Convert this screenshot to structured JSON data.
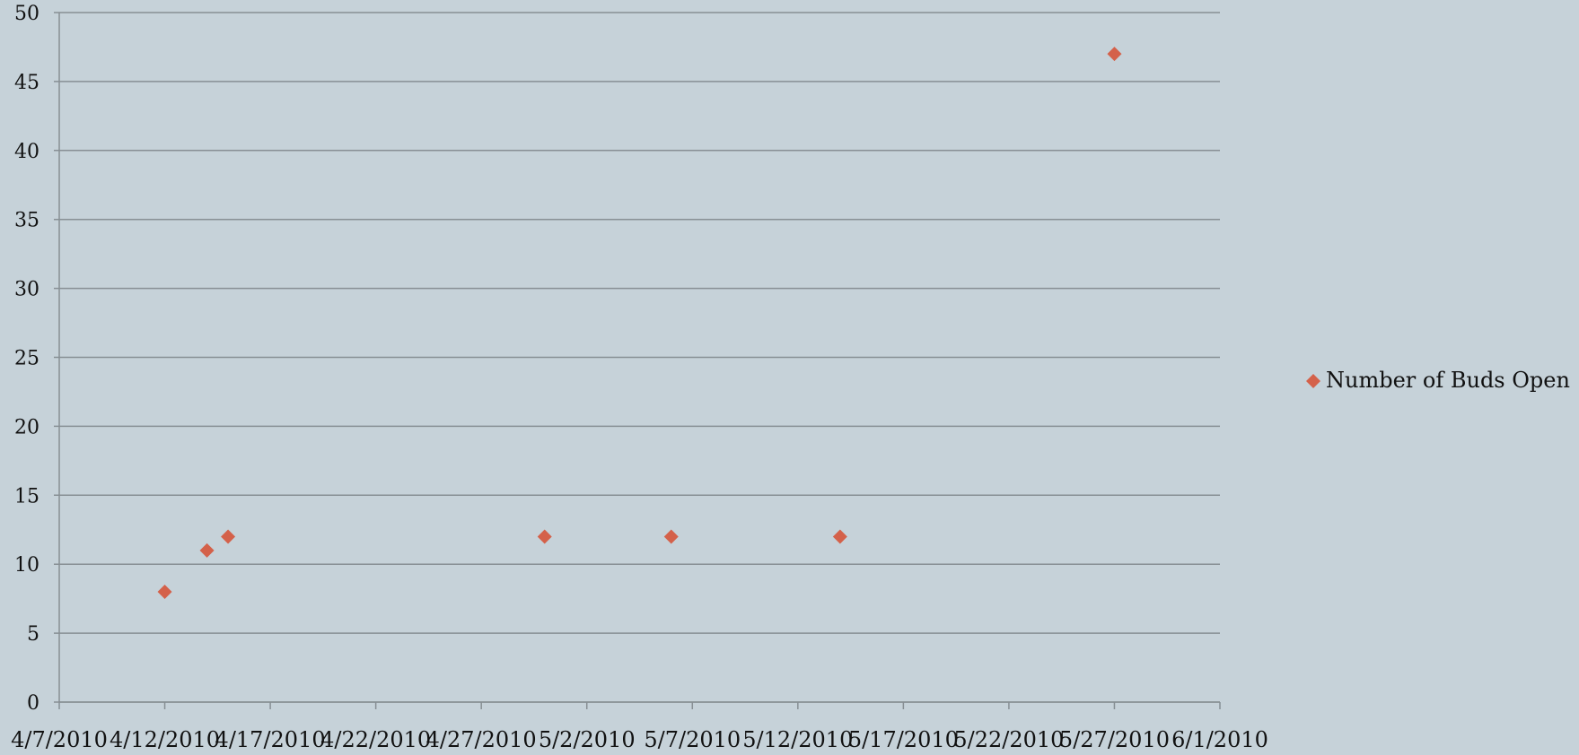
{
  "chart_data": {
    "type": "scatter",
    "title": "",
    "xlabel": "",
    "ylabel": "",
    "x_axis": {
      "type": "date",
      "min": "2010-04-07",
      "max": "2010-06-01",
      "tick_labels": [
        "4/7/2010",
        "4/12/2010",
        "4/17/2010",
        "4/22/2010",
        "4/27/2010",
        "5/2/2010",
        "5/7/2010",
        "5/12/2010",
        "5/17/2010",
        "5/22/2010",
        "5/27/2010",
        "6/1/2010"
      ]
    },
    "y_axis": {
      "min": 0,
      "max": 50,
      "step": 5,
      "tick_labels": [
        "0",
        "5",
        "10",
        "15",
        "20",
        "25",
        "30",
        "35",
        "40",
        "45",
        "50"
      ]
    },
    "grid": "horizontal",
    "legend": {
      "position": "right"
    },
    "series": [
      {
        "name": "Number of Buds Open",
        "color": "#d4614a",
        "marker": "diamond",
        "points": [
          {
            "x": "2010-04-12",
            "y": 8
          },
          {
            "x": "2010-04-14",
            "y": 11
          },
          {
            "x": "2010-04-15",
            "y": 12
          },
          {
            "x": "2010-04-30",
            "y": 12
          },
          {
            "x": "2010-05-06",
            "y": 12
          },
          {
            "x": "2010-05-14",
            "y": 12
          },
          {
            "x": "2010-05-27",
            "y": 47
          }
        ]
      }
    ]
  }
}
